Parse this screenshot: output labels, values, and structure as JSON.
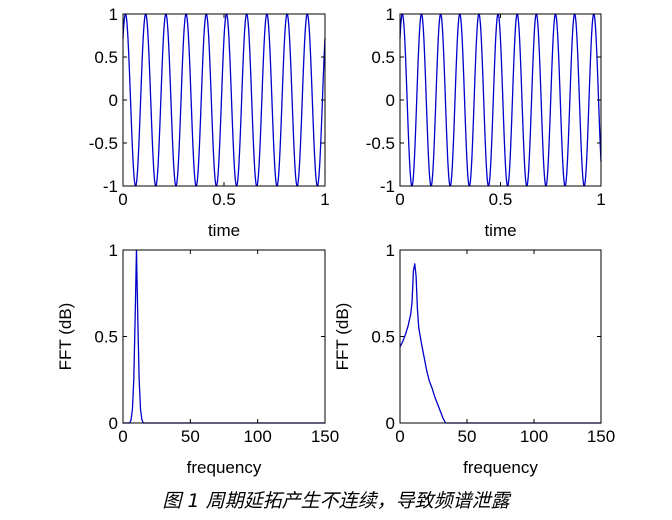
{
  "caption": "图 1 周期延拓产生不连续，导致频谱泄露",
  "chart_data": [
    {
      "id": "top-left",
      "type": "line",
      "xlabel": "time",
      "ylabel": "",
      "xlim": [
        0,
        1
      ],
      "ylim": [
        -1,
        1
      ],
      "xticks": [
        "0",
        "0.5",
        "1"
      ],
      "yticks": [
        "-1",
        "-0.5",
        "0",
        "0.5",
        "1"
      ],
      "series": [
        {
          "frequency_hz": 10,
          "phase_rad": 0.8,
          "x_range": [
            0,
            1
          ]
        }
      ]
    },
    {
      "id": "top-right",
      "type": "line",
      "xlabel": "time",
      "ylabel": "",
      "xlim": [
        0,
        1
      ],
      "ylim": [
        -1,
        1
      ],
      "xticks": [
        "0",
        "0.5",
        "1"
      ],
      "yticks": [
        "-1",
        "-0.5",
        "0",
        "0.5",
        "1"
      ],
      "series": [
        {
          "frequency_hz": 10.5,
          "phase_rad": 0.8,
          "x_range": [
            0,
            1
          ]
        }
      ]
    },
    {
      "id": "bottom-left",
      "type": "line",
      "xlabel": "frequency",
      "ylabel": "FFT (dB)",
      "xlim": [
        0,
        150
      ],
      "ylim": [
        0,
        1
      ],
      "xticks": [
        "0",
        "50",
        "100",
        "150"
      ],
      "yticks": [
        "0",
        "0.5",
        "1"
      ],
      "series": [
        {
          "x": [
            0,
            5,
            6,
            7,
            8,
            9,
            10,
            11,
            12,
            13,
            14,
            15,
            150
          ],
          "y": [
            0,
            0,
            0.02,
            0.08,
            0.25,
            0.6,
            1.0,
            0.6,
            0.25,
            0.08,
            0.02,
            0,
            0
          ]
        }
      ]
    },
    {
      "id": "bottom-right",
      "type": "line",
      "xlabel": "frequency",
      "ylabel": "FFT (dB)",
      "xlim": [
        0,
        150
      ],
      "ylim": [
        0,
        1
      ],
      "xticks": [
        "0",
        "50",
        "100",
        "150"
      ],
      "yticks": [
        "0",
        "0.5",
        "1"
      ],
      "series": [
        {
          "x": [
            0,
            2,
            4,
            6,
            8,
            9,
            10,
            11,
            12,
            13,
            14,
            16,
            18,
            20,
            22,
            24,
            26,
            28,
            30,
            32,
            34,
            40,
            150
          ],
          "y": [
            0.44,
            0.47,
            0.51,
            0.56,
            0.63,
            0.7,
            0.88,
            0.92,
            0.85,
            0.66,
            0.55,
            0.46,
            0.38,
            0.3,
            0.24,
            0.2,
            0.15,
            0.11,
            0.07,
            0.03,
            0,
            0,
            0
          ]
        }
      ]
    }
  ]
}
